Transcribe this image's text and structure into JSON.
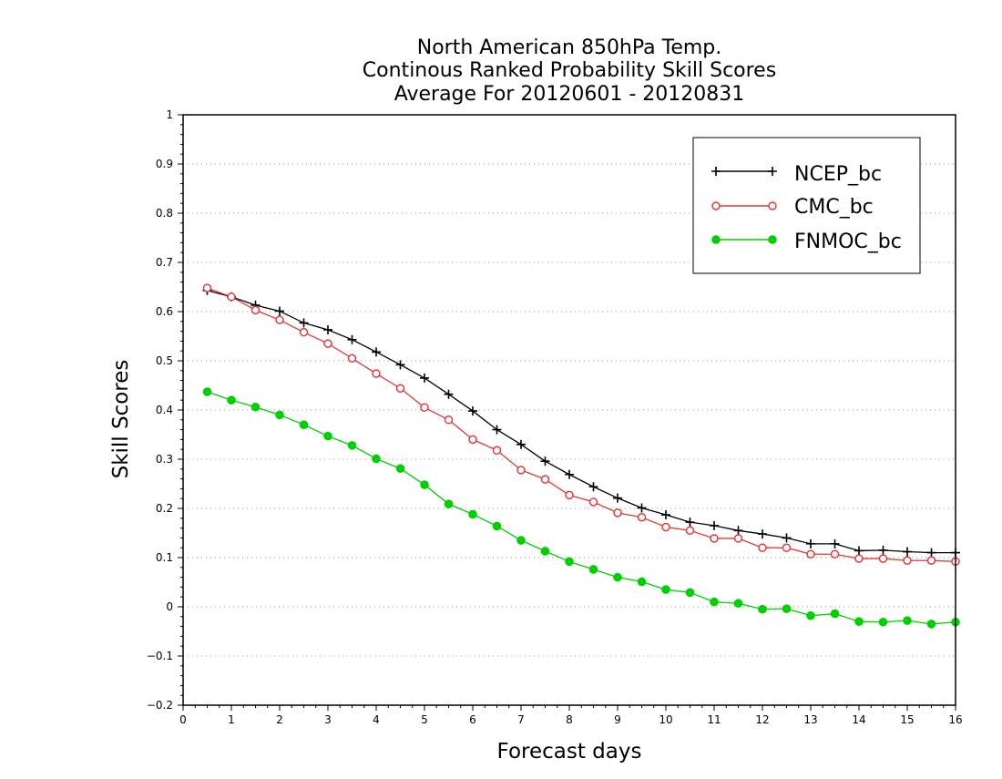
{
  "chart_data": {
    "type": "line",
    "title": [
      "North American 850hPa Temp.",
      "Continous Ranked Probability Skill Scores",
      "Average For 20120601 - 20120831"
    ],
    "xlabel": "Forecast days",
    "ylabel": "Skill Scores",
    "xlim": [
      0,
      16
    ],
    "ylim": [
      -0.2,
      1
    ],
    "xticks": [
      0,
      1,
      2,
      3,
      4,
      5,
      6,
      7,
      8,
      9,
      10,
      11,
      12,
      13,
      14,
      15,
      16
    ],
    "yticks": [
      -0.2,
      -0.1,
      0,
      0.1,
      0.2,
      0.3,
      0.4,
      0.5,
      0.6,
      0.7,
      0.8,
      0.9,
      1
    ],
    "xtick_labels": [
      "0",
      "1",
      "2",
      "3",
      "4",
      "5",
      "6",
      "7",
      "8",
      "9",
      "10",
      "11",
      "12",
      "13",
      "14",
      "15",
      "16"
    ],
    "ytick_labels": [
      "−0.2",
      "−0.1",
      "0",
      "0.1",
      "0.2",
      "0.3",
      "0.4",
      "0.5",
      "0.6",
      "0.7",
      "0.8",
      "0.9",
      "1"
    ],
    "grid": true,
    "grid_axis": "y",
    "legend_position": "top-right",
    "x": [
      0.5,
      1.0,
      1.5,
      2.0,
      2.5,
      3.0,
      3.5,
      4.0,
      4.5,
      5.0,
      5.5,
      6.0,
      6.5,
      7.0,
      7.5,
      8.0,
      8.5,
      9.0,
      9.5,
      10.0,
      10.5,
      11.0,
      11.5,
      12.0,
      12.5,
      13.0,
      13.5,
      14.0,
      14.5,
      15.0,
      15.5,
      16.0
    ],
    "series": [
      {
        "name": "NCEP_bc",
        "color": "#000000",
        "marker": "plus",
        "values": [
          0.643,
          0.63,
          0.613,
          0.601,
          0.577,
          0.563,
          0.543,
          0.518,
          0.492,
          0.465,
          0.432,
          0.398,
          0.36,
          0.33,
          0.296,
          0.269,
          0.244,
          0.221,
          0.201,
          0.187,
          0.172,
          0.165,
          0.155,
          0.148,
          0.14,
          0.128,
          0.128,
          0.114,
          0.115,
          0.112,
          0.11,
          0.11
        ]
      },
      {
        "name": "CMC_bc",
        "color": "#e03a3a",
        "marker": "open-circle",
        "values": [
          0.648,
          0.63,
          0.603,
          0.583,
          0.558,
          0.535,
          0.505,
          0.474,
          0.444,
          0.405,
          0.38,
          0.34,
          0.318,
          0.278,
          0.259,
          0.227,
          0.213,
          0.191,
          0.182,
          0.162,
          0.155,
          0.139,
          0.139,
          0.12,
          0.12,
          0.107,
          0.107,
          0.098,
          0.098,
          0.094,
          0.094,
          0.092
        ]
      },
      {
        "name": "FNMOC_bc",
        "color": "#00d000",
        "marker": "filled-circle",
        "values": [
          0.437,
          0.42,
          0.406,
          0.39,
          0.37,
          0.347,
          0.328,
          0.301,
          0.281,
          0.248,
          0.209,
          0.188,
          0.164,
          0.135,
          0.113,
          0.092,
          0.076,
          0.06,
          0.051,
          0.035,
          0.029,
          0.01,
          0.007,
          -0.005,
          -0.004,
          -0.018,
          -0.014,
          -0.03,
          -0.031,
          -0.028,
          -0.035,
          -0.031
        ]
      }
    ]
  }
}
